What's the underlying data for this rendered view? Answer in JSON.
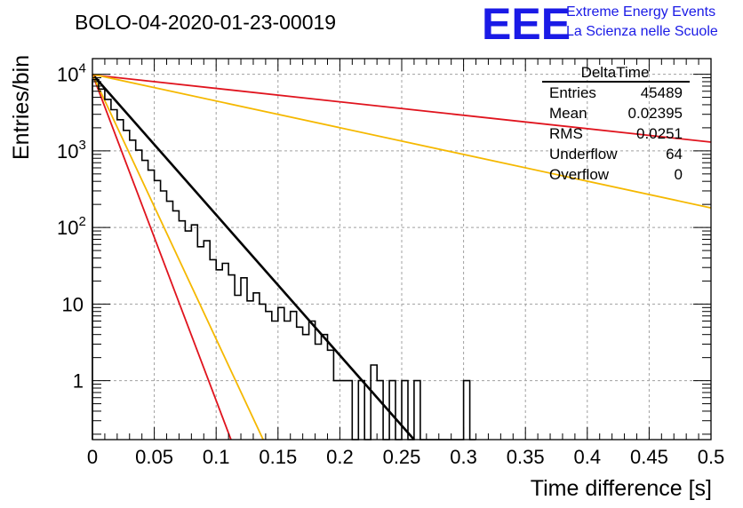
{
  "header": {
    "title": "BOLO-04-2020-01-23-00019",
    "logo_text": "EEE",
    "logo_line1": "Extreme Energy Events",
    "logo_line2": "La Scienza nelle Scuole"
  },
  "stats_box": {
    "name": "DeltaTime",
    "rows": [
      {
        "label": "Entries",
        "value": "45489"
      },
      {
        "label": "Mean",
        "value": "0.02395"
      },
      {
        "label": "RMS",
        "value": "0.0251"
      },
      {
        "label": "Underflow",
        "value": "64"
      },
      {
        "label": "Overflow",
        "value": "0"
      }
    ]
  },
  "colors": {
    "histogram": "#000000",
    "fit": "#000000",
    "red_curves": "#e0141e",
    "orange_curves": "#f5b800",
    "grid": "#a0a0a0"
  },
  "chart_data": {
    "type": "line",
    "xlabel": "Time difference [s]",
    "ylabel": "Entries/bin",
    "xlim": [
      0,
      0.5
    ],
    "ylim": [
      0.17,
      16000
    ],
    "y_scale": "log",
    "grid": true,
    "x_ticks": [
      "0",
      "0.05",
      "0.1",
      "0.15",
      "0.2",
      "0.25",
      "0.3",
      "0.35",
      "0.4",
      "0.45",
      "0.5"
    ],
    "y_ticks": [
      {
        "base": "10",
        "exp": "4",
        "value": 10000
      },
      {
        "base": "10",
        "exp": "3",
        "value": 1000
      },
      {
        "base": "10",
        "exp": "2",
        "value": 100
      },
      {
        "base": "10",
        "exp": "",
        "value": 10
      },
      {
        "base": "1",
        "exp": "",
        "value": 1
      }
    ],
    "histogram": {
      "bin_edges_start": 0.0,
      "bin_width": 0.005,
      "values": [
        8500,
        6400,
        4700,
        3450,
        2550,
        1850,
        1380,
        1020,
        750,
        560,
        410,
        300,
        220,
        165,
        122,
        90,
        108,
        56,
        67,
        38,
        28,
        34,
        24,
        13,
        22,
        11,
        14,
        10,
        8,
        6,
        9,
        6,
        8,
        5,
        4,
        6,
        3,
        4,
        2.5,
        1,
        1,
        1,
        0.15,
        1,
        0.15,
        1.6,
        1,
        0.15,
        1,
        0.15,
        1,
        0.15,
        1,
        0.15,
        0.15,
        0.15,
        0.15,
        0.15,
        0.15,
        0.15,
        1,
        0.15
      ]
    },
    "series": [
      {
        "kind": "fit",
        "x": [
          0,
          0.26
        ],
        "values": [
          10000,
          0.17
        ]
      },
      {
        "kind": "red",
        "x": [
          0,
          0.112
        ],
        "values": [
          10000,
          0.17
        ]
      },
      {
        "kind": "orange",
        "x": [
          0,
          0.138
        ],
        "values": [
          10000,
          0.17
        ]
      },
      {
        "kind": "red",
        "x": [
          0,
          0.5
        ],
        "values": [
          9800,
          1300
        ]
      },
      {
        "kind": "orange",
        "x": [
          0,
          0.5
        ],
        "values": [
          10000,
          180
        ]
      }
    ]
  }
}
